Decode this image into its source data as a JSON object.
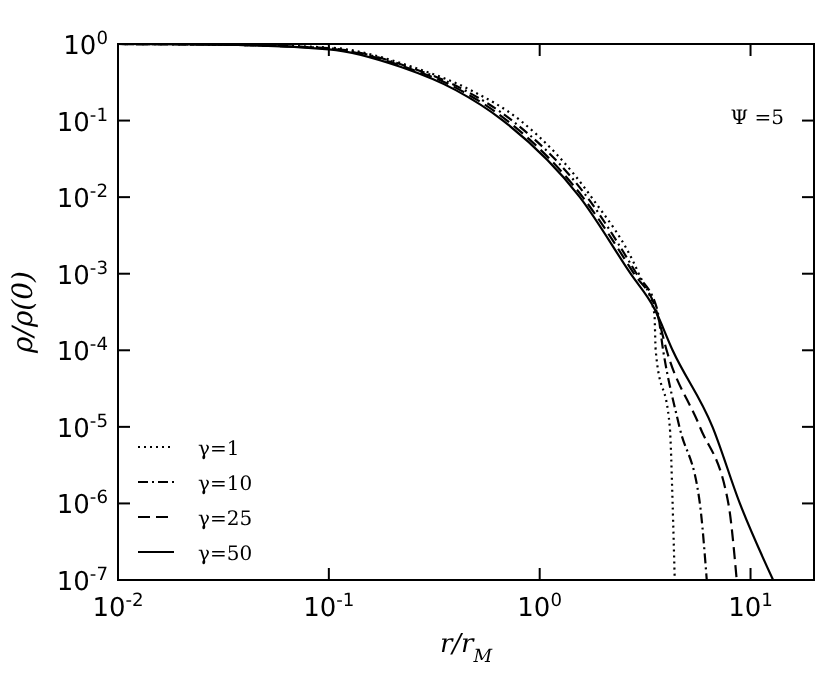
{
  "chart_data": {
    "type": "line",
    "xlabel": "r/r$_{M}$",
    "ylabel": "ρ/ρ(0)",
    "log": "xy",
    "grid": false,
    "legend": "bottom left",
    "xlim": [
      0.01,
      20
    ],
    "ylim": [
      1e-07,
      1
    ],
    "xticks": [
      {
        "value": 0.01,
        "label": "10$^{-2}$"
      },
      {
        "value": 0.1,
        "label": "10$^{-1}$"
      },
      {
        "value": 1,
        "label": "10$^{0}$"
      },
      {
        "value": 10,
        "label": "10$^{1}$"
      }
    ],
    "yticks": [
      {
        "value": 1e-07,
        "label": "10$^{-7}$"
      },
      {
        "value": 1e-06,
        "label": "10$^{-6}$"
      },
      {
        "value": 1e-05,
        "label": "10$^{-5}$"
      },
      {
        "value": 0.0001,
        "label": "10$^{-4}$"
      },
      {
        "value": 0.001,
        "label": "10$^{-3}$"
      },
      {
        "value": 0.01,
        "label": "10$^{-2}$"
      },
      {
        "value": 0.1,
        "label": "10$^{-1}$"
      },
      {
        "value": 1,
        "label": "10$^{0}$"
      }
    ],
    "annotations": [
      "Ψ =5"
    ],
    "series": [
      {
        "name": "γ=1",
        "color": "#000000",
        "line_style": "dotted",
        "x": [
          0.01,
          0.03,
          0.1,
          0.25,
          0.47,
          0.81,
          1.76,
          2.95,
          3.5,
          3.55,
          4.14,
          4.27,
          4.37
        ],
        "values": [
          1,
          0.98,
          0.9,
          0.5,
          0.25,
          0.1,
          0.01,
          0.001,
          0.0003,
          0.0001,
          1e-05,
          1e-06,
          1e-07
        ]
      },
      {
        "name": "γ=10",
        "color": "#000000",
        "line_style": "dashdot",
        "x": [
          0.01,
          0.03,
          0.1,
          0.24,
          0.44,
          0.74,
          1.68,
          2.88,
          3.6,
          3.85,
          4.6,
          5.75,
          6.2
        ],
        "values": [
          1,
          0.98,
          0.88,
          0.5,
          0.25,
          0.1,
          0.01,
          0.001,
          0.00035,
          0.0001,
          1e-05,
          1e-06,
          1e-07
        ]
      },
      {
        "name": "γ=25",
        "color": "#000000",
        "line_style": "dashed",
        "x": [
          0.01,
          0.03,
          0.1,
          0.23,
          0.42,
          0.7,
          1.6,
          2.8,
          3.55,
          4.0,
          5.75,
          7.85,
          8.6
        ],
        "values": [
          1,
          0.98,
          0.87,
          0.5,
          0.25,
          0.1,
          0.01,
          0.001,
          0.00035,
          0.0001,
          1e-05,
          1e-06,
          1e-07
        ]
      },
      {
        "name": "γ=50",
        "color": "#000000",
        "line_style": "solid",
        "x": [
          0.01,
          0.03,
          0.1,
          0.22,
          0.4,
          0.67,
          1.55,
          2.7,
          3.5,
          4.27,
          6.6,
          8.9,
          12.8
        ],
        "values": [
          1,
          0.98,
          0.85,
          0.5,
          0.25,
          0.1,
          0.01,
          0.001,
          0.00035,
          0.0001,
          1e-05,
          1e-06,
          1e-07
        ]
      }
    ]
  }
}
